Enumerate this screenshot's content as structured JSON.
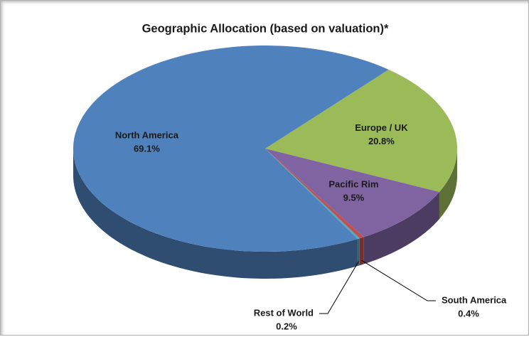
{
  "chart_data": {
    "type": "pie",
    "title": "Geographic Allocation (based on valuation)*",
    "categories": [
      "Europe / UK",
      "Pacific Rim",
      "South America",
      "Rest of World",
      "North America"
    ],
    "values": [
      20.8,
      9.5,
      0.4,
      0.2,
      69.1
    ],
    "value_labels": [
      "20.8%",
      "9.5%",
      "0.4%",
      "0.2%",
      "69.1%"
    ],
    "colors": [
      "#9bbb59",
      "#8064a2",
      "#c0504d",
      "#4bacc6",
      "#4f81bd"
    ]
  }
}
